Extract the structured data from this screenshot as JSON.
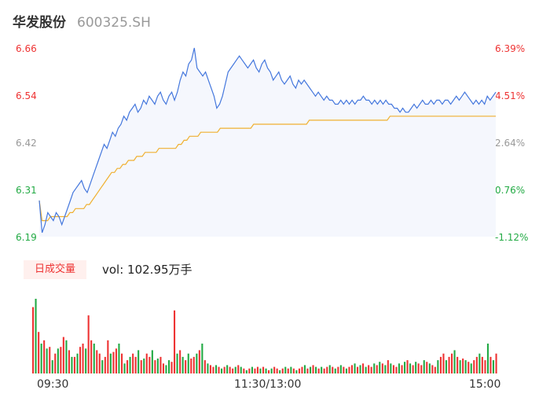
{
  "header": {
    "name": "华发股份",
    "code": "600325.SH"
  },
  "price_axis": {
    "left_labels": [
      "6.66",
      "6.54",
      "6.42",
      "6.31",
      "6.19"
    ],
    "right_labels": [
      "6.39%",
      "4.51%",
      "2.64%",
      "0.76%",
      "-1.12%"
    ]
  },
  "volume_panel": {
    "badge": "日成交量",
    "vol_text": "vol: 102.95万手"
  },
  "time_axis": {
    "ticks": [
      "09:30",
      "11:30/13:00",
      "15:00"
    ]
  },
  "colors": {
    "up": "#ee3333",
    "down": "#22aa44",
    "neutral": "#999999",
    "price_line": "#4477dd",
    "avg_line": "#f0b030",
    "area_fill": "#f5f7fd"
  },
  "chart_data": [
    {
      "type": "line",
      "series": [
        {
          "values": [
            6.28,
            6.2,
            6.22,
            6.25,
            6.24,
            6.23,
            6.25,
            6.24,
            6.22,
            6.24,
            6.26,
            6.28,
            6.3,
            6.31,
            6.32,
            6.33,
            6.31,
            6.3,
            6.32,
            6.34,
            6.36,
            6.38,
            6.4,
            6.42,
            6.41,
            6.43,
            6.45,
            6.44,
            6.46,
            6.47,
            6.49,
            6.48,
            6.5,
            6.51,
            6.52,
            6.5,
            6.51,
            6.53,
            6.52,
            6.54,
            6.53,
            6.52,
            6.54,
            6.55,
            6.53,
            6.52,
            6.54,
            6.55,
            6.53,
            6.55,
            6.58,
            6.6,
            6.59,
            6.62,
            6.63,
            6.66,
            6.61,
            6.6,
            6.59,
            6.6,
            6.58,
            6.56,
            6.54,
            6.51,
            6.52,
            6.54,
            6.57,
            6.6,
            6.61,
            6.62,
            6.63,
            6.64,
            6.63,
            6.62,
            6.61,
            6.62,
            6.63,
            6.61,
            6.6,
            6.62,
            6.63,
            6.61,
            6.6,
            6.58,
            6.59,
            6.6,
            6.58,
            6.57,
            6.58,
            6.59,
            6.57,
            6.56,
            6.58,
            6.57,
            6.58,
            6.57,
            6.56,
            6.55,
            6.54,
            6.55,
            6.54,
            6.53,
            6.54,
            6.53,
            6.53,
            6.52,
            6.52,
            6.53,
            6.52,
            6.53,
            6.52,
            6.53,
            6.52,
            6.53,
            6.53,
            6.54,
            6.53,
            6.53,
            6.52,
            6.53,
            6.52,
            6.53,
            6.52,
            6.53,
            6.52,
            6.52,
            6.51,
            6.51,
            6.5,
            6.51,
            6.5,
            6.5,
            6.51,
            6.52,
            6.51,
            6.52,
            6.53,
            6.52,
            6.52,
            6.53,
            6.52,
            6.53,
            6.53,
            6.52,
            6.53,
            6.53,
            6.52,
            6.53,
            6.54,
            6.53,
            6.54,
            6.55,
            6.54,
            6.53,
            6.52,
            6.53,
            6.52,
            6.53,
            6.52,
            6.54,
            6.53,
            6.54,
            6.55
          ]
        },
        {
          "values": [
            6.28,
            6.23,
            6.23,
            6.23,
            6.24,
            6.24,
            6.24,
            6.24,
            6.24,
            6.24,
            6.24,
            6.25,
            6.25,
            6.26,
            6.26,
            6.26,
            6.26,
            6.27,
            6.27,
            6.28,
            6.29,
            6.3,
            6.31,
            6.32,
            6.33,
            6.34,
            6.35,
            6.35,
            6.36,
            6.36,
            6.37,
            6.37,
            6.38,
            6.38,
            6.38,
            6.39,
            6.39,
            6.39,
            6.4,
            6.4,
            6.4,
            6.4,
            6.4,
            6.41,
            6.41,
            6.41,
            6.41,
            6.41,
            6.41,
            6.41,
            6.42,
            6.42,
            6.43,
            6.43,
            6.44,
            6.44,
            6.44,
            6.44,
            6.45,
            6.45,
            6.45,
            6.45,
            6.45,
            6.45,
            6.45,
            6.46,
            6.46,
            6.46,
            6.46,
            6.46,
            6.46,
            6.46,
            6.46,
            6.46,
            6.46,
            6.46,
            6.46,
            6.47,
            6.47,
            6.47,
            6.47,
            6.47,
            6.47,
            6.47,
            6.47,
            6.47,
            6.47,
            6.47,
            6.47,
            6.47,
            6.47,
            6.47,
            6.47,
            6.47,
            6.47,
            6.47,
            6.47,
            6.48,
            6.48,
            6.48,
            6.48,
            6.48,
            6.48,
            6.48,
            6.48,
            6.48,
            6.48,
            6.48,
            6.48,
            6.48,
            6.48,
            6.48,
            6.48,
            6.48,
            6.48,
            6.48,
            6.48,
            6.48,
            6.48,
            6.48,
            6.48,
            6.48,
            6.48,
            6.48,
            6.48,
            6.48,
            6.49,
            6.49,
            6.49,
            6.49,
            6.49,
            6.49,
            6.49,
            6.49,
            6.49,
            6.49,
            6.49,
            6.49,
            6.49,
            6.49,
            6.49,
            6.49,
            6.49,
            6.49,
            6.49,
            6.49,
            6.49,
            6.49,
            6.49,
            6.49,
            6.49,
            6.49,
            6.49,
            6.49,
            6.49,
            6.49,
            6.49,
            6.49,
            6.49,
            6.49,
            6.49,
            6.49,
            6.49,
            6.49,
            6.49
          ]
        }
      ],
      "ylim": [
        6.19,
        6.66
      ]
    },
    {
      "type": "bar",
      "values": [
        40,
        45,
        25,
        18,
        20,
        15,
        16,
        8,
        12,
        15,
        16,
        22,
        20,
        14,
        10,
        10,
        12,
        16,
        18,
        15,
        35,
        20,
        18,
        14,
        12,
        8,
        10,
        20,
        12,
        13,
        15,
        18,
        12,
        6,
        8,
        10,
        12,
        10,
        14,
        8,
        9,
        12,
        10,
        14,
        8,
        9,
        10,
        6,
        5,
        8,
        7,
        38,
        12,
        14,
        10,
        8,
        12,
        9,
        10,
        12,
        14,
        18,
        8,
        6,
        5,
        4,
        5,
        4,
        3,
        4,
        5,
        4,
        3,
        4,
        5,
        4,
        3,
        2,
        3,
        4,
        3,
        4,
        3,
        4,
        3,
        2,
        3,
        4,
        3,
        2,
        3,
        4,
        3,
        4,
        3,
        2,
        3,
        4,
        5,
        3,
        4,
        5,
        4,
        3,
        4,
        3,
        4,
        5,
        4,
        3,
        4,
        5,
        4,
        3,
        4,
        5,
        6,
        4,
        5,
        6,
        4,
        5,
        4,
        6,
        5,
        7,
        6,
        5,
        8,
        6,
        5,
        4,
        6,
        5,
        7,
        8,
        6,
        5,
        7,
        6,
        5,
        8,
        7,
        6,
        5,
        4,
        8,
        10,
        12,
        8,
        10,
        12,
        14,
        10,
        8,
        9,
        8,
        7,
        6,
        8,
        10,
        12,
        10,
        8,
        18,
        10,
        8,
        12
      ],
      "up": [
        true,
        false,
        true,
        false,
        true,
        false,
        true,
        false,
        true,
        false,
        true,
        true,
        false,
        true,
        false,
        true,
        false,
        true,
        true,
        false,
        true,
        true,
        false,
        true,
        true,
        false,
        true,
        true,
        false,
        true,
        true,
        false,
        true,
        false,
        true,
        false,
        true,
        true,
        false,
        true,
        false,
        true,
        true,
        false,
        true,
        false,
        true,
        true,
        false,
        false,
        true,
        true,
        false,
        true,
        false,
        true,
        false,
        true,
        true,
        false,
        true,
        false,
        true,
        false,
        true,
        true,
        false,
        true,
        false,
        true,
        false,
        true,
        true,
        false,
        true,
        false,
        true,
        false,
        true,
        false,
        true,
        true,
        false,
        true,
        false,
        true,
        false,
        true,
        true,
        false,
        true,
        false,
        true,
        false,
        true,
        false,
        true,
        true,
        false,
        true,
        false,
        true,
        false,
        true,
        false,
        true,
        true,
        false,
        true,
        false,
        true,
        false,
        true,
        false,
        true,
        true,
        false,
        true,
        false,
        true,
        false,
        true,
        true,
        false,
        true,
        false,
        true,
        false,
        true,
        false,
        true,
        true,
        false,
        true,
        false,
        true,
        false,
        true,
        false,
        true,
        true,
        false,
        true,
        false,
        true,
        true,
        false,
        true,
        true,
        false,
        true,
        true,
        false,
        true,
        false,
        true,
        false,
        true,
        false,
        true,
        true,
        false,
        true,
        true,
        false,
        true,
        false,
        true
      ]
    }
  ]
}
